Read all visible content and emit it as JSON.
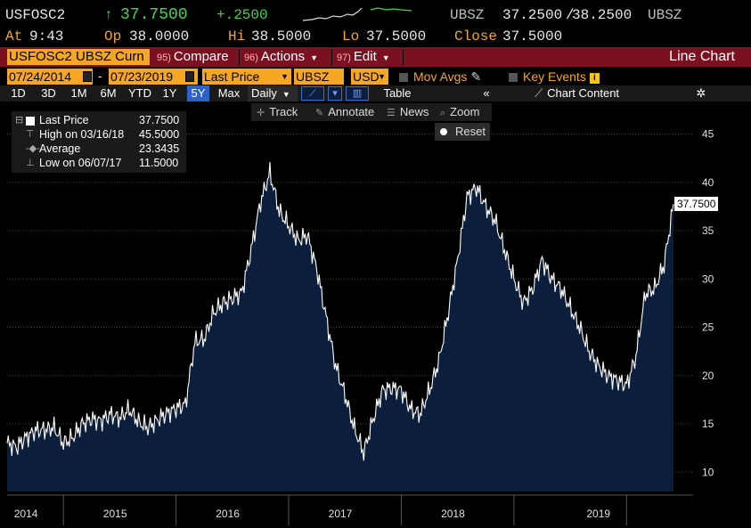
{
  "quote": {
    "ticker": "USFOSC2",
    "arrow": "↑",
    "last": "37.7500",
    "change": "+.2500",
    "bid_ask_label": "UBSZ",
    "bid": "37.2500",
    "ask": "38.2500",
    "bid_ask_label2": "UBSZ",
    "at_label": "At",
    "time": "9:43",
    "open_label": "Op",
    "open": "38.0000",
    "high_label": "Hi",
    "high": "38.5000",
    "low_label": "Lo",
    "low": "37.5000",
    "close_label": "Close",
    "close": "37.5000"
  },
  "function_bar": {
    "security": "USFOSC2 UBSZ Curn",
    "compare_num": "95)",
    "compare": "Compare",
    "actions_num": "96)",
    "actions": "Actions",
    "edit_num": "97)",
    "edit": "Edit",
    "chart_title": "Line Chart"
  },
  "settings": {
    "start_date": "07/24/2014",
    "end_date": "07/23/2019",
    "field": "Last Price",
    "source": "UBSZ",
    "currency": "USD",
    "mov_avgs": "Mov Avgs",
    "key_events": "Key Events"
  },
  "range_bar": {
    "ranges": [
      "1D",
      "3D",
      "1M",
      "6M",
      "YTD",
      "1Y",
      "5Y",
      "Max"
    ],
    "active_range": "5Y",
    "frequency": "Daily",
    "table": "Table",
    "chart_content": "Chart Content"
  },
  "chart_toolbar": {
    "track": "Track",
    "annotate": "Annotate",
    "news": "News",
    "zoom": "Zoom",
    "reset": "Reset"
  },
  "legend": {
    "last_price_label": "Last Price",
    "last_price": "37.7500",
    "high_label": "High on 03/16/18",
    "high": "45.5000",
    "average_label": "Average",
    "average": "23.3435",
    "low_label": "Low on 06/07/17",
    "low": "11.5000"
  },
  "colors": {
    "accent_orange": "#f5a623",
    "function_bar": "#7a1020",
    "line": "#ffffff",
    "area_fill": "#0b1f3d",
    "positive": "#3fd84a"
  },
  "chart_data": {
    "type": "area",
    "title": "",
    "xlabel": "",
    "ylabel": "",
    "ylim": [
      8,
      48
    ],
    "y_ticks": [
      10,
      15,
      20,
      25,
      30,
      35,
      40,
      45
    ],
    "x_tick_labels": [
      "2014",
      "2015",
      "2016",
      "2017",
      "2018",
      "2019"
    ],
    "grid": true,
    "last_value_label": "37.7500",
    "series": [
      {
        "values_monthly_from_2014_07": [
          13.0,
          12.6,
          13.6,
          14.3,
          14.4,
          14.6,
          13.0,
          13.6,
          15.0,
          15.5,
          15.3,
          16.0,
          15.6,
          16.5,
          15.2,
          14.6,
          15.4,
          16.1,
          16.6,
          17.0,
          23.5,
          23.8,
          26.5,
          27.5,
          28.0,
          28.6,
          33.0,
          38.0,
          41.0,
          37.0,
          35.5,
          34.0,
          34.5,
          31.0,
          26.0,
          21.0,
          18.0,
          14.5,
          12.0,
          15.5,
          18.5,
          18.7,
          18.5,
          16.5,
          16.0,
          18.5,
          21.5,
          26.5,
          32.0,
          38.5,
          39.5,
          37.5,
          36.0,
          33.0,
          30.0,
          27.5,
          29.0,
          32.0,
          30.0,
          29.0,
          27.0,
          25.0,
          22.5,
          21.0,
          20.0,
          19.5,
          19.0,
          22.0,
          28.5,
          29.0,
          31.5,
          37.75
        ]
      }
    ]
  }
}
